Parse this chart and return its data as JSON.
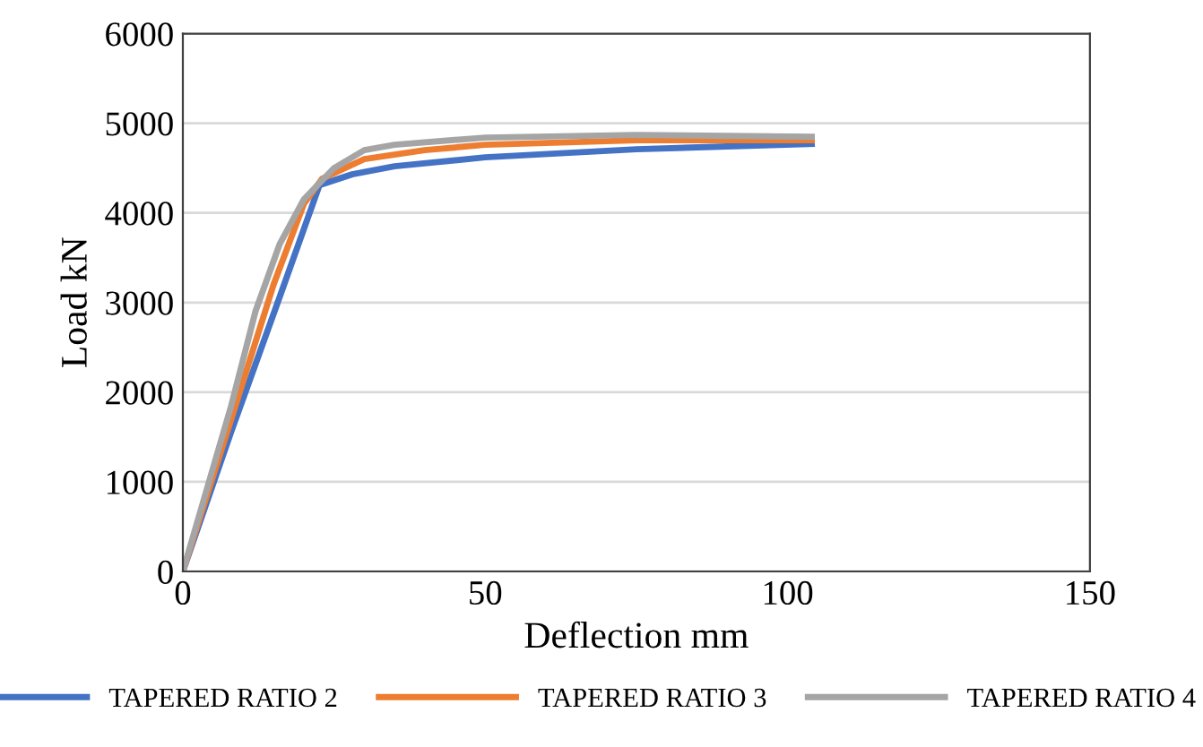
{
  "chart_data": {
    "type": "line",
    "xlabel": "Deflection mm",
    "ylabel": "Load kN",
    "xlim": [
      0,
      150
    ],
    "xticks": [
      0,
      50,
      100,
      150
    ],
    "ylim": [
      0,
      6000
    ],
    "yticks": [
      0,
      1000,
      2000,
      3000,
      4000,
      5000,
      6000
    ],
    "grid": "y",
    "legend": "bottom",
    "marker": "none",
    "line_style": "solid",
    "series": [
      {
        "name": "TAPERED RATIO 2",
        "color": "#4472c4",
        "x": [
          0,
          8,
          16,
          22.6,
          28,
          35,
          50,
          75,
          104
        ],
        "values": [
          0,
          1560,
          3060,
          4310,
          4430,
          4520,
          4620,
          4710,
          4770
        ]
      },
      {
        "name": "TAPERED RATIO 3",
        "color": "#ed7d31",
        "x": [
          0,
          8,
          15,
          20,
          23,
          30,
          40,
          50,
          75,
          104
        ],
        "values": [
          0,
          1700,
          3200,
          4100,
          4380,
          4600,
          4700,
          4760,
          4810,
          4810
        ]
      },
      {
        "name": "TAPERED RATIO 4",
        "color": "#a5a5a5",
        "x": [
          0,
          8,
          12,
          16,
          20,
          25,
          30,
          35,
          50,
          75,
          104
        ],
        "values": [
          0,
          1850,
          2900,
          3650,
          4150,
          4500,
          4700,
          4760,
          4840,
          4870,
          4850
        ]
      }
    ]
  }
}
